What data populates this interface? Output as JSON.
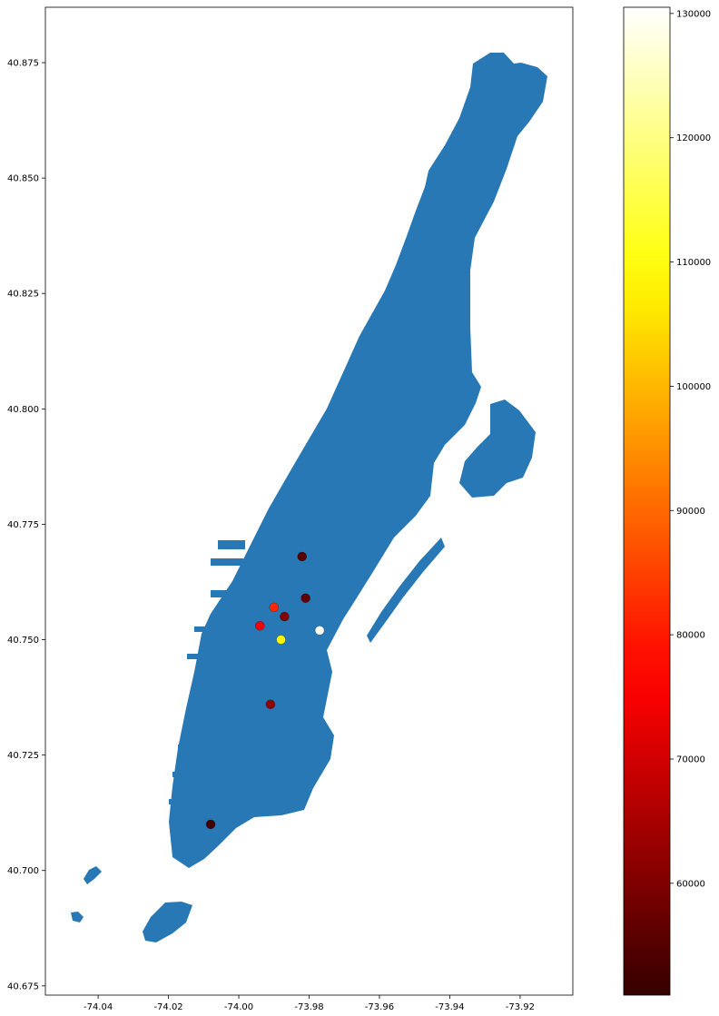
{
  "map": {
    "x_axis": {
      "range": [
        -74.055,
        -73.905
      ],
      "ticks": [
        "-74.04",
        "-74.02",
        "-74.00",
        "-73.98",
        "-73.96",
        "-73.94",
        "-73.92"
      ],
      "tick_values": [
        -74.04,
        -74.02,
        -74.0,
        -73.98,
        -73.96,
        -73.94,
        -73.92
      ]
    },
    "y_axis": {
      "range": [
        40.673,
        40.887
      ],
      "ticks": [
        "40.675",
        "40.700",
        "40.725",
        "40.750",
        "40.775",
        "40.800",
        "40.825",
        "40.850",
        "40.875"
      ],
      "tick_values": [
        40.675,
        40.7,
        40.725,
        40.75,
        40.775,
        40.8,
        40.825,
        40.85,
        40.875
      ]
    },
    "land_color": "#2878b5",
    "points": [
      {
        "lon": -73.982,
        "lat": 40.768,
        "value": 55000
      },
      {
        "lon": -73.981,
        "lat": 40.759,
        "value": 56000
      },
      {
        "lon": -73.99,
        "lat": 40.757,
        "value": 82000
      },
      {
        "lon": -73.987,
        "lat": 40.755,
        "value": 60000
      },
      {
        "lon": -73.994,
        "lat": 40.753,
        "value": 74000
      },
      {
        "lon": -73.977,
        "lat": 40.752,
        "value": 130000
      },
      {
        "lon": -73.988,
        "lat": 40.75,
        "value": 108000
      },
      {
        "lon": -73.991,
        "lat": 40.736,
        "value": 62000
      },
      {
        "lon": -74.008,
        "lat": 40.71,
        "value": 53000
      }
    ]
  },
  "colorbar": {
    "colormap": "hot",
    "range": [
      51000,
      130500
    ],
    "ticks": [
      "60000",
      "70000",
      "80000",
      "90000",
      "100000",
      "110000",
      "120000",
      "130000"
    ],
    "tick_values": [
      60000,
      70000,
      80000,
      90000,
      100000,
      110000,
      120000,
      130000
    ]
  }
}
